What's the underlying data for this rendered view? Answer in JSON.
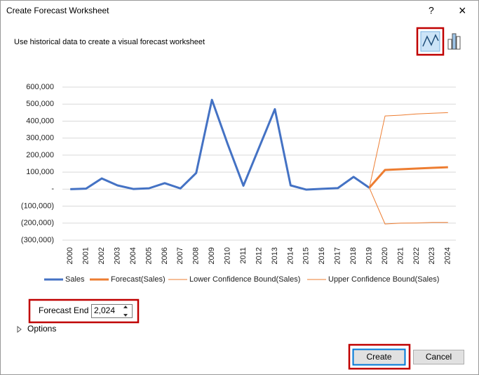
{
  "dialog": {
    "title": "Create Forecast Worksheet",
    "help": "?",
    "close": "×",
    "description": "Use historical data to create a visual forecast worksheet",
    "forecast_end_label": "Forecast End",
    "forecast_end_value": "2,024",
    "options": "Options",
    "create": "Create",
    "cancel": "Cancel"
  },
  "chart_data": {
    "type": "line",
    "categories": [
      "2000",
      "2001",
      "2002",
      "2003",
      "2004",
      "2005",
      "2006",
      "2007",
      "2008",
      "2009",
      "2010",
      "2011",
      "2012",
      "2013",
      "2014",
      "2015",
      "2016",
      "2017",
      "2018",
      "2019",
      "2020",
      "2021",
      "2022",
      "2023",
      "2024"
    ],
    "ylim": [
      -300000,
      600000
    ],
    "yticks": [
      {
        "value": 600000,
        "label": "600,000"
      },
      {
        "value": 500000,
        "label": "500,000"
      },
      {
        "value": 400000,
        "label": "400,000"
      },
      {
        "value": 300000,
        "label": "300,000"
      },
      {
        "value": 200000,
        "label": "200,000"
      },
      {
        "value": 100000,
        "label": "100,000"
      },
      {
        "value": 0,
        "label": "-"
      },
      {
        "value": -100000,
        "label": "(100,000)"
      },
      {
        "value": -200000,
        "label": "(200,000)"
      },
      {
        "value": -300000,
        "label": "(300,000)"
      }
    ],
    "grid": true,
    "legend": "bottom",
    "series": [
      {
        "name": "Sales",
        "color": "#4472c4",
        "values": [
          0,
          3000,
          63000,
          22000,
          1000,
          5000,
          35000,
          4000,
          95000,
          525000,
          265000,
          20000,
          245000,
          470000,
          22000,
          -3000,
          2000,
          6000,
          72000,
          8000,
          null,
          null,
          null,
          null,
          null
        ]
      },
      {
        "name": "Forecast(Sales)",
        "color": "#ed7d31",
        "values": [
          null,
          null,
          null,
          null,
          null,
          null,
          null,
          null,
          null,
          null,
          null,
          null,
          null,
          null,
          null,
          null,
          null,
          null,
          null,
          8000,
          113000,
          117000,
          121000,
          125000,
          129000
        ]
      },
      {
        "name": "Lower Confidence Bound(Sales)",
        "color": "#ed7d31",
        "values": [
          null,
          null,
          null,
          null,
          null,
          null,
          null,
          null,
          null,
          null,
          null,
          null,
          null,
          null,
          null,
          null,
          null,
          null,
          null,
          8000,
          -205000,
          -200000,
          -199000,
          -196000,
          -196000
        ]
      },
      {
        "name": "Upper Confidence Bound(Sales)",
        "color": "#ed7d31",
        "values": [
          null,
          null,
          null,
          null,
          null,
          null,
          null,
          null,
          null,
          null,
          null,
          null,
          null,
          null,
          null,
          null,
          null,
          null,
          null,
          8000,
          430000,
          435000,
          442000,
          446000,
          450000
        ]
      }
    ]
  }
}
